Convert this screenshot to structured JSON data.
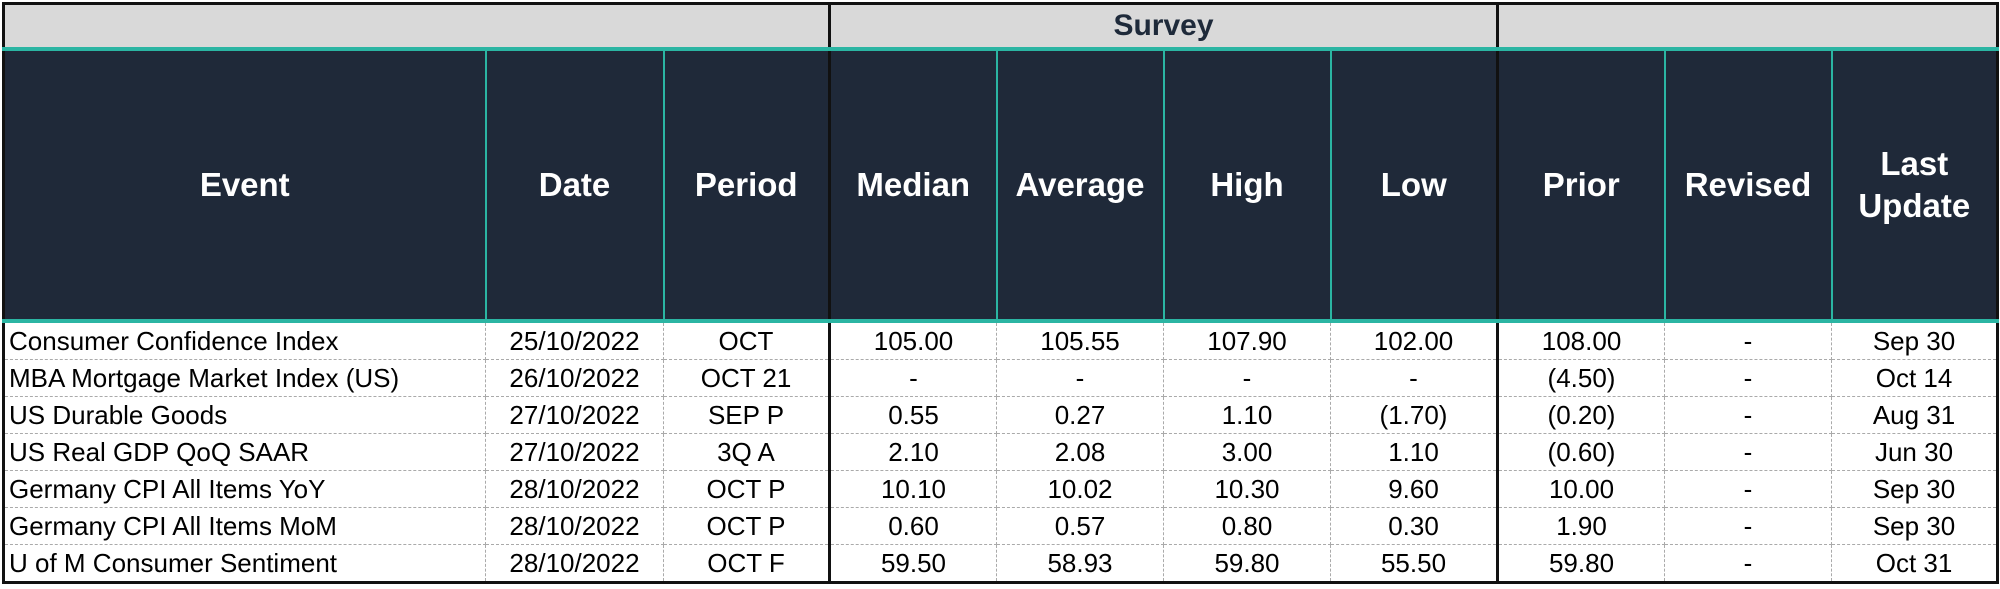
{
  "group_header": {
    "survey": "Survey"
  },
  "columns": {
    "event": "Event",
    "date": "Date",
    "period": "Period",
    "median": "Median",
    "average": "Average",
    "high": "High",
    "low": "Low",
    "prior": "Prior",
    "revised": "Revised",
    "last_update_line1": "Last",
    "last_update_line2": "Update"
  },
  "colors": {
    "header_bg": "#1f2939",
    "accent": "#2bb5a3",
    "group_bg": "#d9d9d9",
    "negative": "#e01010"
  },
  "rows": [
    {
      "event": "Consumer Confidence Index",
      "date": "25/10/2022",
      "period": "OCT",
      "median": "105.00",
      "average": "105.55",
      "high": "107.90",
      "low": "102.00",
      "prior": "108.00",
      "revised": "-",
      "last_update": "Sep 30"
    },
    {
      "event": "MBA  Mortgage Market Index (US)",
      "date": "26/10/2022",
      "period": "OCT 21",
      "median": "-",
      "average": "-",
      "high": "-",
      "low": "-",
      "prior": "(4.50)",
      "revised": "-",
      "last_update": "Oct 14"
    },
    {
      "event": "US Durable Goods",
      "date": "27/10/2022",
      "period": "SEP P",
      "median": "0.55",
      "average": "0.27",
      "high": "1.10",
      "low": "(1.70)",
      "prior": "(0.20)",
      "revised": "-",
      "last_update": "Aug 31"
    },
    {
      "event": "US Real GDP QoQ SAAR",
      "date": "27/10/2022",
      "period": "3Q A",
      "median": "2.10",
      "average": "2.08",
      "high": "3.00",
      "low": "1.10",
      "prior": "(0.60)",
      "revised": "-",
      "last_update": "Jun 30"
    },
    {
      "event": "Germany CPI All Items YoY",
      "date": "28/10/2022",
      "period": "OCT P",
      "median": "10.10",
      "average": "10.02",
      "high": "10.30",
      "low": "9.60",
      "prior": "10.00",
      "revised": "-",
      "last_update": "Sep 30"
    },
    {
      "event": "Germany CPI All Items MoM",
      "date": "28/10/2022",
      "period": "OCT P",
      "median": "0.60",
      "average": "0.57",
      "high": "0.80",
      "low": "0.30",
      "prior": "1.90",
      "revised": "-",
      "last_update": "Sep 30"
    },
    {
      "event": "U of M Consumer Sentiment",
      "date": "28/10/2022",
      "period": "OCT F",
      "median": "59.50",
      "average": "58.93",
      "high": "59.80",
      "low": "55.50",
      "prior": "59.80",
      "revised": "-",
      "last_update": "Oct 31"
    }
  ]
}
